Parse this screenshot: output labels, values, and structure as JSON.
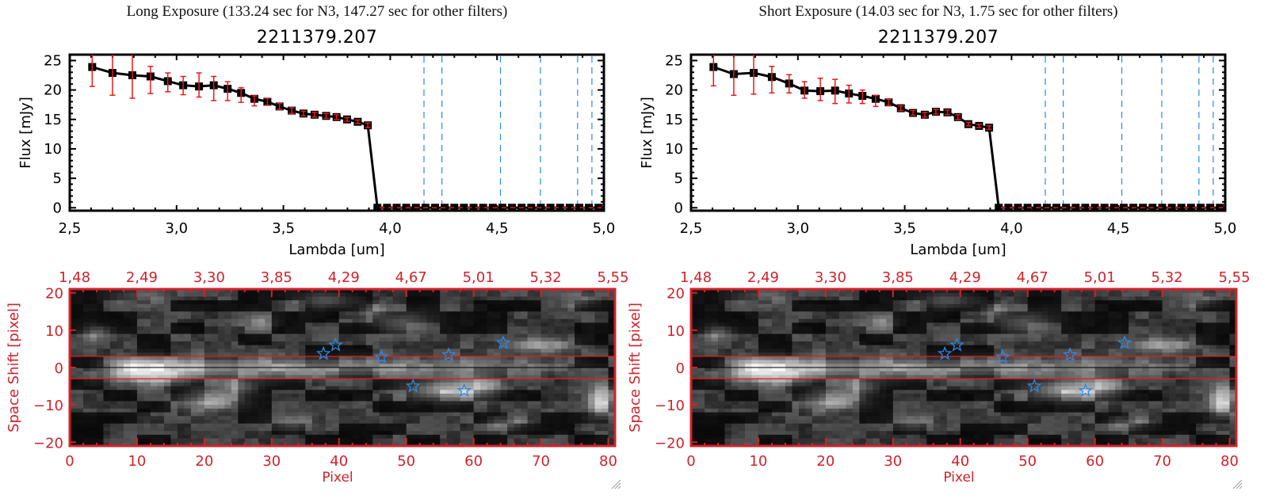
{
  "panels": [
    {
      "id": "long",
      "title": "Long Exposure (133.24 sec for N3, 147.27 sec for other filters)",
      "object_id": "2211379.207"
    },
    {
      "id": "short",
      "title": "Short Exposure (14.03 sec for N3, 1.75 sec for other filters)",
      "object_id": "2211379.207"
    }
  ],
  "colors": {
    "axis": "#000000",
    "line": "#000000",
    "error_bar": "#e8191c",
    "zero_dash": "#e8191c",
    "filter_lines": "#2a8ae6",
    "image_axis": "#d1222a",
    "stars": "#2a8ae6",
    "aperture_lines": "#e8191c"
  },
  "chart_data": [
    {
      "type": "line",
      "panel": "long",
      "title": "2211379.207",
      "xlabel": "Lambda [um]",
      "ylabel": "Flux [mJy]",
      "xlim": [
        2.5,
        5.0
      ],
      "ylim": [
        -0.5,
        26
      ],
      "xticks": [
        "2.5",
        "3.0",
        "3.5",
        "4.0",
        "4.5",
        "5.0"
      ],
      "xtick_values": [
        2.5,
        3.0,
        3.5,
        4.0,
        4.5,
        5.0
      ],
      "yticks": [
        "0",
        "5",
        "10",
        "15",
        "20",
        "25"
      ],
      "ytick_values": [
        0,
        5,
        10,
        15,
        20,
        25
      ],
      "series": [
        {
          "name": "flux",
          "x": [
            2.605,
            2.7,
            2.793,
            2.878,
            2.959,
            3.031,
            3.105,
            3.174,
            3.239,
            3.302,
            3.364,
            3.425,
            3.482,
            3.539,
            3.594,
            3.646,
            3.7,
            3.749,
            3.798,
            3.848,
            3.895,
            3.94,
            3.985,
            4.03,
            4.075,
            4.12,
            4.165,
            4.21,
            4.255,
            4.3,
            4.345,
            4.39,
            4.435,
            4.48,
            4.525,
            4.57,
            4.615,
            4.66,
            4.705,
            4.75,
            4.795,
            4.84,
            4.885,
            4.93,
            4.975
          ],
          "y": [
            23.9,
            22.9,
            22.5,
            22.3,
            21.5,
            20.8,
            20.6,
            20.8,
            20.2,
            19.5,
            18.5,
            18.0,
            17.2,
            16.5,
            16.0,
            15.8,
            15.6,
            15.4,
            15.0,
            14.6,
            14.0,
            0,
            0,
            0,
            0,
            0,
            0,
            0,
            0,
            0,
            0,
            0,
            0,
            0,
            0,
            0,
            0,
            0,
            0,
            0,
            0,
            0,
            0,
            0,
            0
          ],
          "err_low": [
            20.6,
            19.1,
            18.6,
            19.4,
            19.7,
            19.2,
            18.8,
            18.2,
            18.2,
            17.9,
            17.3,
            17.4,
            16.7,
            16.0,
            15.6,
            15.4,
            15.2,
            15.0,
            14.7,
            14.3,
            13.6
          ],
          "err_high": [
            26.5,
            26.5,
            26.5,
            24.0,
            22.9,
            22.3,
            22.9,
            22.3,
            21.4,
            20.4,
            19.0,
            18.6,
            17.7,
            17.0,
            16.4,
            16.2,
            16.0,
            15.8,
            15.3,
            14.9,
            14.4
          ]
        }
      ],
      "filter_lines_um": [
        4.158,
        4.242,
        4.516,
        4.703,
        4.877,
        4.944
      ],
      "zero_line": 0
    },
    {
      "type": "line",
      "panel": "short",
      "title": "2211379.207",
      "xlabel": "Lambda [um]",
      "ylabel": "Flux [mJy]",
      "xlim": [
        2.5,
        5.0
      ],
      "ylim": [
        -0.5,
        26
      ],
      "xticks": [
        "2.5",
        "3.0",
        "3.5",
        "4.0",
        "4.5",
        "5.0"
      ],
      "xtick_values": [
        2.5,
        3.0,
        3.5,
        4.0,
        4.5,
        5.0
      ],
      "yticks": [
        "0",
        "5",
        "10",
        "15",
        "20",
        "25"
      ],
      "ytick_values": [
        0,
        5,
        10,
        15,
        20,
        25
      ],
      "series": [
        {
          "name": "flux",
          "x": [
            2.605,
            2.7,
            2.793,
            2.878,
            2.959,
            3.031,
            3.105,
            3.174,
            3.239,
            3.302,
            3.364,
            3.425,
            3.482,
            3.539,
            3.594,
            3.646,
            3.7,
            3.749,
            3.798,
            3.848,
            3.895,
            3.94,
            3.985,
            4.03,
            4.075,
            4.12,
            4.165,
            4.21,
            4.255,
            4.3,
            4.345,
            4.39,
            4.435,
            4.48,
            4.525,
            4.57,
            4.615,
            4.66,
            4.705,
            4.75,
            4.795,
            4.84,
            4.885,
            4.93,
            4.975
          ],
          "y": [
            23.9,
            22.7,
            22.9,
            22.2,
            21.1,
            19.9,
            19.8,
            19.9,
            19.4,
            19.0,
            18.5,
            17.9,
            16.9,
            16.1,
            15.8,
            16.3,
            16.2,
            15.4,
            14.2,
            13.9,
            13.6,
            0,
            0,
            0,
            0,
            0,
            0,
            0,
            0,
            0,
            0,
            0,
            0,
            0,
            0,
            0,
            0,
            0,
            0,
            0,
            0,
            0,
            0,
            0,
            0
          ],
          "err_low": [
            20.7,
            19.1,
            19.3,
            19.5,
            19.5,
            18.6,
            18.2,
            17.7,
            17.8,
            17.7,
            17.2,
            17.4,
            16.5,
            15.7,
            15.4,
            15.9,
            15.8,
            15.0,
            13.9,
            13.6,
            13.3
          ],
          "err_high": [
            26.5,
            26.5,
            26.5,
            24.0,
            22.6,
            21.4,
            22.0,
            21.8,
            20.8,
            20.0,
            19.1,
            18.4,
            17.3,
            16.5,
            16.2,
            16.7,
            16.6,
            15.8,
            14.5,
            14.2,
            13.9
          ]
        }
      ],
      "filter_lines_um": [
        4.158,
        4.242,
        4.516,
        4.703,
        4.877,
        4.944
      ],
      "zero_line": 0
    },
    {
      "type": "heatmap",
      "panel": "long",
      "xlabel": "Pixel",
      "ylabel": "Space Shift [pixel]",
      "xlim": [
        0,
        81
      ],
      "ylim": [
        -21,
        21
      ],
      "xticks": [
        "0",
        "10",
        "20",
        "30",
        "40",
        "50",
        "60",
        "70",
        "80"
      ],
      "xtick_values": [
        0,
        10,
        20,
        30,
        40,
        50,
        60,
        70,
        80
      ],
      "yticks": [
        "-20",
        "-10",
        "0",
        "10",
        "20"
      ],
      "ytick_values": [
        -20,
        -10,
        0,
        10,
        20
      ],
      "top_axis_labels": [
        "1.48",
        "2.49",
        "3.30",
        "3.85",
        "4.29",
        "4.67",
        "5.01",
        "5.32",
        "5.55"
      ],
      "aperture_lines": [
        3,
        -3
      ],
      "center_line": 0,
      "stars": [
        [
          37.7,
          3.7
        ],
        [
          39.5,
          6.0
        ],
        [
          46.3,
          2.8
        ],
        [
          56.3,
          3.4
        ],
        [
          64.4,
          6.6
        ],
        [
          51.0,
          -5.0
        ],
        [
          58.6,
          -6.2
        ]
      ],
      "trace": {
        "y": 0,
        "peak_x": 10,
        "width": 2.5
      },
      "blobs": [
        [
          21,
          -9,
          4,
          2.5,
          0.45
        ],
        [
          25,
          -5,
          3,
          2,
          0.3
        ],
        [
          28,
          12,
          2,
          2,
          0.3
        ],
        [
          45,
          15,
          2,
          2,
          0.25
        ],
        [
          55,
          -6,
          5,
          2.5,
          0.45
        ],
        [
          60,
          -5,
          4,
          3,
          0.4
        ],
        [
          70,
          6,
          4,
          2,
          0.4
        ],
        [
          79,
          -9,
          2,
          4,
          0.6
        ],
        [
          4,
          9,
          2,
          2,
          0.3
        ],
        [
          12,
          -3,
          6,
          2,
          0.35
        ],
        [
          50,
          12,
          4,
          3,
          0.25
        ],
        [
          33,
          -15,
          3,
          2,
          0.2
        ],
        [
          65,
          -15,
          3,
          2,
          0.25
        ],
        [
          75,
          18,
          3,
          2,
          0.25
        ],
        [
          38,
          18,
          4,
          2,
          0.25
        ],
        [
          10,
          19,
          4,
          2,
          0.2
        ]
      ]
    },
    {
      "type": "heatmap",
      "panel": "short",
      "xlabel": "Pixel",
      "ylabel": "Space Shift [pixel]",
      "xlim": [
        0,
        81
      ],
      "ylim": [
        -21,
        21
      ],
      "xticks": [
        "0",
        "10",
        "20",
        "30",
        "40",
        "50",
        "60",
        "70",
        "80"
      ],
      "xtick_values": [
        0,
        10,
        20,
        30,
        40,
        50,
        60,
        70,
        80
      ],
      "yticks": [
        "-20",
        "-10",
        "0",
        "10",
        "20"
      ],
      "ytick_values": [
        -20,
        -10,
        0,
        10,
        20
      ],
      "top_axis_labels": [
        "1.48",
        "2.49",
        "3.30",
        "3.85",
        "4.29",
        "4.67",
        "5.01",
        "5.32",
        "5.55"
      ],
      "aperture_lines": [
        3,
        -3
      ],
      "center_line": 0,
      "stars": [
        [
          37.7,
          3.7
        ],
        [
          39.5,
          6.0
        ],
        [
          46.3,
          2.8
        ],
        [
          56.3,
          3.4
        ],
        [
          64.4,
          6.6
        ],
        [
          51.0,
          -5.0
        ],
        [
          58.6,
          -6.2
        ]
      ],
      "trace": {
        "y": 0,
        "peak_x": 10,
        "width": 2.5
      },
      "blobs": [
        [
          21,
          -9,
          4,
          2.5,
          0.45
        ],
        [
          25,
          -5,
          3,
          2,
          0.3
        ],
        [
          28,
          12,
          2,
          2,
          0.3
        ],
        [
          45,
          15,
          2,
          2,
          0.25
        ],
        [
          55,
          -6,
          5,
          2.5,
          0.45
        ],
        [
          60,
          -5,
          4,
          3,
          0.4
        ],
        [
          70,
          6,
          4,
          2,
          0.4
        ],
        [
          79,
          -9,
          2,
          4,
          0.6
        ],
        [
          4,
          9,
          2,
          2,
          0.3
        ],
        [
          12,
          -3,
          6,
          2,
          0.35
        ],
        [
          50,
          12,
          4,
          3,
          0.25
        ],
        [
          33,
          -15,
          3,
          2,
          0.2
        ],
        [
          65,
          -15,
          3,
          2,
          0.25
        ],
        [
          75,
          18,
          3,
          2,
          0.25
        ],
        [
          38,
          18,
          4,
          2,
          0.25
        ],
        [
          10,
          19,
          4,
          2,
          0.2
        ]
      ]
    }
  ],
  "icons": {
    "resize_grip": "resize-grip-icon",
    "star_marker": "star-icon"
  }
}
